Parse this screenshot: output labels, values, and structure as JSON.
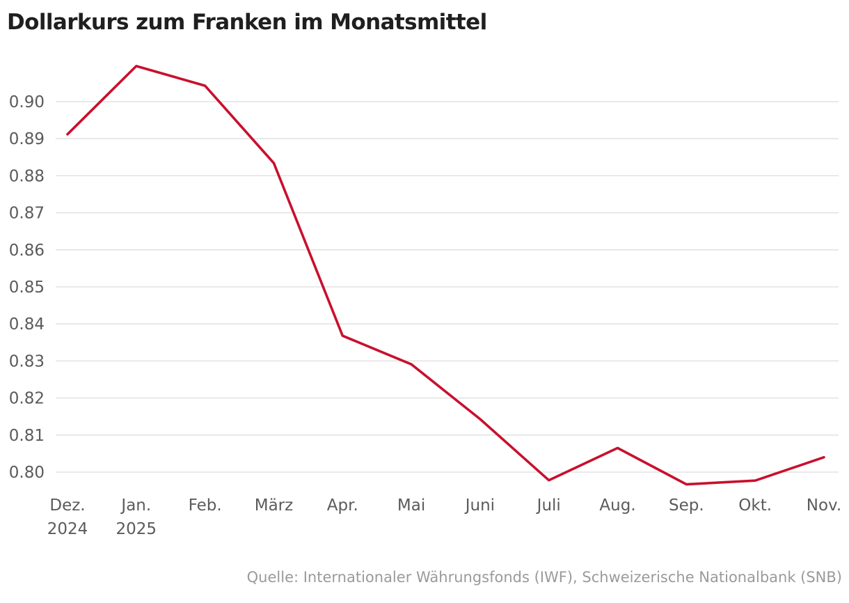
{
  "chart_data": {
    "type": "line",
    "title": "Dollarkurs zum Franken im Monatsmittel",
    "source": "Quelle: Internationaler Währungsfonds (IWF), Schweizerische Nationalbank (SNB)",
    "xlabel": "",
    "ylabel": "",
    "categories": [
      [
        "Dez.",
        "2024"
      ],
      [
        "Jan.",
        "2025"
      ],
      [
        "Feb."
      ],
      [
        "März"
      ],
      [
        "Apr."
      ],
      [
        "Mai"
      ],
      [
        "Juni"
      ],
      [
        "Juli"
      ],
      [
        "Aug."
      ],
      [
        "Sep."
      ],
      [
        "Okt."
      ],
      [
        "Nov."
      ]
    ],
    "series": [
      {
        "values": [
          0.8912,
          0.9096,
          0.9043,
          0.8834,
          0.8368,
          0.8291,
          0.8143,
          0.7978,
          0.8065,
          0.7967,
          0.7977,
          0.804
        ]
      }
    ],
    "yticks": [
      "0.80",
      "0.81",
      "0.82",
      "0.83",
      "0.84",
      "0.85",
      "0.86",
      "0.87",
      "0.88",
      "0.89",
      "0.90"
    ],
    "ylim": [
      0.8,
      0.9
    ],
    "grid": true,
    "legend": "none",
    "colors": {
      "line": "#c8102e",
      "grid": "#dedede",
      "text": "#5b5b5b",
      "title": "#1f1f1f",
      "source": "#9a9a9a"
    }
  }
}
